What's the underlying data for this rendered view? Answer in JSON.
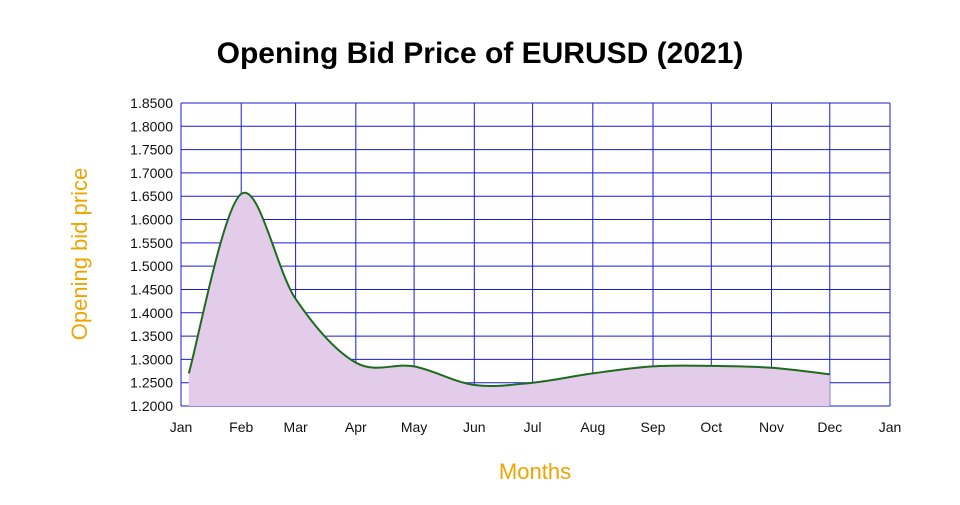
{
  "colors": {
    "grid": "#1a1ad6",
    "line": "#1e6b1e",
    "fill": "#e3cbea",
    "axis_title": "#f0a400",
    "text": "#111111"
  },
  "chart_data": {
    "type": "area",
    "title": "Opening Bid Price of EURUSD (2021)",
    "xlabel": "Months",
    "ylabel": "Opening bid price",
    "x_ticks": [
      "Jan",
      "Feb",
      "Mar",
      "Apr",
      "May",
      "Jun",
      "Jul",
      "Aug",
      "Sep",
      "Oct",
      "Nov",
      "Dec",
      "Jan"
    ],
    "y_ticks": [
      "1.2000",
      "1.2500",
      "1.3000",
      "1.3500",
      "1.4000",
      "1.4500",
      "1.5000",
      "1.5500",
      "1.6000",
      "1.6500",
      "1.7000",
      "1.7500",
      "1.8000",
      "1.8500"
    ],
    "ylim": [
      1.2,
      1.85
    ],
    "grid": true,
    "legend": "none",
    "x": [
      "2021-01-05",
      "2021-02-01",
      "2021-03-01",
      "2021-04-01",
      "2021-05-01",
      "2021-06-01",
      "2021-07-01",
      "2021-08-01",
      "2021-09-01",
      "2021-10-01",
      "2021-11-01",
      "2021-12-01"
    ],
    "values": [
      1.27,
      1.655,
      1.43,
      1.293,
      1.285,
      1.245,
      1.25,
      1.27,
      1.285,
      1.286,
      1.282,
      1.268
    ]
  }
}
